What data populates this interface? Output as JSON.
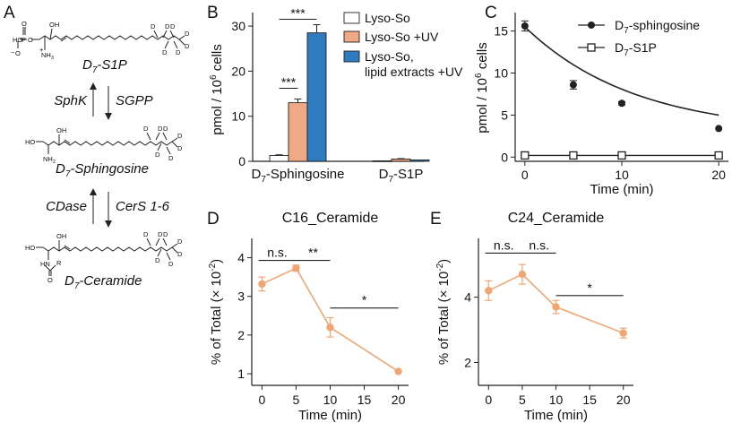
{
  "panel_letters": {
    "a": "A",
    "b": "B",
    "c": "C",
    "d": "D",
    "e": "E"
  },
  "pathway": {
    "s1p": {
      "name": "D",
      "sub": "7",
      "suffix": "-S1P"
    },
    "sphingosine": {
      "name": "D",
      "sub": "7",
      "suffix": "-Sphingosine"
    },
    "ceramide": {
      "name": "D",
      "sub": "7",
      "suffix": "-Ceramide"
    },
    "enzymes": {
      "sphk": "SphK",
      "sgpp": "SGPP",
      "cdase": "CDase",
      "cers": "CerS 1-6"
    },
    "atoms": {
      "o": "O",
      "p": "P",
      "oh": "OH",
      "ho": "HO",
      "nh3": "NH",
      "nh3_sub": "3",
      "nh3_sup": "+",
      "nh2": "NH",
      "nh2_sub": "2",
      "hn": "HN",
      "r": "R",
      "d": "D",
      "minus": "−"
    }
  },
  "colors": {
    "white_bar": "#ffffff",
    "uv_bar": "#f0a985",
    "uv_lipid_bar": "#2f7bbf",
    "line_black": "#222222",
    "ceramide_line": "#f0a673"
  },
  "chart_data": [
    {
      "panel": "B",
      "type": "bar",
      "categories": [
        "D7-Sphingosine",
        "D7-S1P"
      ],
      "category_labels": [
        {
          "main": "D",
          "sub": "7",
          "rest": "-Sphingosine"
        },
        {
          "main": "D",
          "sub": "7",
          "rest": "-S1P"
        }
      ],
      "series": [
        {
          "name": "Lyso-So",
          "values": [
            1.3,
            0.1
          ],
          "errors": [
            0.15,
            0.05
          ]
        },
        {
          "name": "Lyso-So +UV",
          "values": [
            13.0,
            0.5
          ],
          "errors": [
            0.8,
            0.1
          ]
        },
        {
          "name": "Lyso-So, lipid extracts +UV",
          "name_lines": [
            "Lyso-So,",
            "lipid extracts +UV"
          ],
          "values": [
            28.5,
            0.3
          ],
          "errors": [
            1.8,
            0.05
          ]
        }
      ],
      "ylim": [
        0,
        33
      ],
      "yticks": [
        0,
        10,
        20,
        30
      ],
      "ylabel": {
        "main": "pmol / 10",
        "sup": "6",
        "rest": " cells"
      },
      "significance": [
        {
          "text": "***",
          "between": [
            "Lyso-So",
            "Lyso-So, lipid extracts +UV"
          ],
          "at": 31.5
        },
        {
          "text": "***",
          "between": [
            "Lyso-So",
            "Lyso-So +UV"
          ],
          "at": 16.2
        }
      ],
      "legend_position": "top-right"
    },
    {
      "panel": "C",
      "type": "line",
      "x": [
        0,
        5,
        10,
        20
      ],
      "series": [
        {
          "name": "D7-sphingosine",
          "label": {
            "main": "D",
            "sub": "7",
            "rest": "-sphingosine"
          },
          "values": [
            15.6,
            8.6,
            6.4,
            3.4
          ],
          "errors": [
            0.6,
            0.5,
            0.2,
            0.1
          ],
          "marker": "filled-circle",
          "fit": "exponential-decay"
        },
        {
          "name": "D7-S1P",
          "label": {
            "main": "D",
            "sub": "7",
            "rest": "-S1P"
          },
          "values": [
            0.2,
            0.2,
            0.2,
            0.2
          ],
          "errors": [
            0,
            0,
            0,
            0
          ],
          "marker": "open-square"
        }
      ],
      "xlim": [
        -1,
        21
      ],
      "ylim": [
        -0.5,
        17.2
      ],
      "xticks": [
        0,
        10,
        20
      ],
      "yticks": [
        0,
        5,
        10,
        15
      ],
      "xlabel": "Time (min)",
      "ylabel": {
        "main": "pmol / 10",
        "sup": "6",
        "rest": " cells"
      },
      "legend_position": "top-right"
    },
    {
      "panel": "D",
      "type": "line",
      "title": "C16_Ceramide",
      "x": [
        0,
        5,
        10,
        20
      ],
      "series": [
        {
          "name": "C16_Ceramide",
          "values": [
            3.32,
            3.73,
            2.2,
            1.06
          ],
          "errors": [
            0.18,
            0.08,
            0.25,
            0.04
          ]
        }
      ],
      "xlim": [
        -1.5,
        21.5
      ],
      "ylim": [
        0.7,
        4.5
      ],
      "xticks": [
        0,
        5,
        10,
        15,
        20
      ],
      "yticks": [
        1,
        2,
        3,
        4
      ],
      "xlabel": "Time (min)",
      "ylabel": {
        "main": "% of Total (× 10",
        "sup": "-2",
        "rest": ")"
      },
      "significance": [
        {
          "text": "n.s.",
          "x_from": -0.5,
          "x_to": 5,
          "at": 3.93
        },
        {
          "text": "**",
          "x_from": 5,
          "x_to": 10,
          "at": 3.93
        },
        {
          "text": "*",
          "x_from": 10,
          "x_to": 20,
          "at": 2.7
        }
      ]
    },
    {
      "panel": "E",
      "type": "line",
      "title": "C24_Ceramide",
      "x": [
        0,
        5,
        10,
        20
      ],
      "series": [
        {
          "name": "C24_Ceramide",
          "values": [
            4.2,
            4.7,
            3.7,
            2.9
          ],
          "errors": [
            0.3,
            0.3,
            0.2,
            0.15
          ]
        }
      ],
      "xlim": [
        -1.5,
        21.5
      ],
      "ylim": [
        1.3,
        5.8
      ],
      "xticks": [
        0,
        5,
        10,
        15,
        20
      ],
      "yticks": [
        2,
        4
      ],
      "xlabel": "Time (min)",
      "ylabel": {
        "main": "% of Total (× 10",
        "sup": "-2",
        "rest": ")"
      },
      "significance": [
        {
          "text": "n.s.",
          "x_from": -0.5,
          "x_to": 5,
          "at": 5.35
        },
        {
          "text": "n.s.",
          "x_from": 5,
          "x_to": 10,
          "at": 5.35
        },
        {
          "text": "*",
          "x_from": 10,
          "x_to": 20,
          "at": 4.05
        }
      ]
    }
  ]
}
